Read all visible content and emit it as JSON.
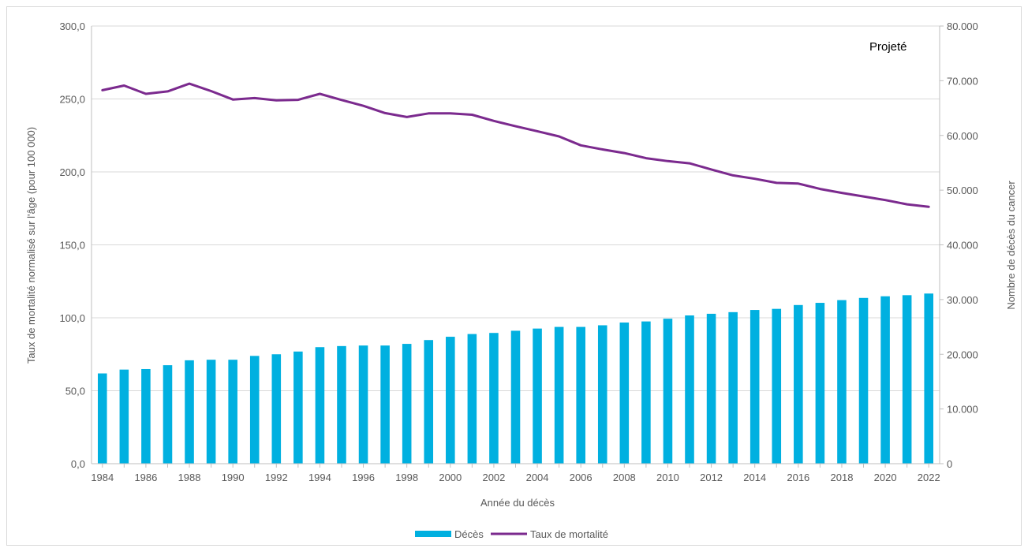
{
  "chart_data": {
    "type": "bar+line",
    "annotation": "Projeté",
    "xlabel": "Année du décès",
    "ylabel_left": "Taux de mortalité normalisé sur l'âge (pour 100 000)",
    "ylabel_right": "Nombre de décès du cancer",
    "ylim_left": [
      0,
      300
    ],
    "ylim_right": [
      0,
      80000
    ],
    "left_ticks": [
      "0,0",
      "50,0",
      "100,0",
      "150,0",
      "200,0",
      "250,0",
      "300,0"
    ],
    "right_ticks": [
      "0",
      "10.000",
      "20.000",
      "30.000",
      "40.000",
      "50.000",
      "60.000",
      "70.000",
      "80.000"
    ],
    "x_tick_labels": [
      "1984",
      "1986",
      "1988",
      "1990",
      "1992",
      "1994",
      "1996",
      "1998",
      "2000",
      "2002",
      "2004",
      "2006",
      "2008",
      "2010",
      "2012",
      "2014",
      "2016",
      "2018",
      "2020",
      "2022"
    ],
    "grid": true,
    "legend_position": "bottom",
    "x": [
      1984,
      1985,
      1986,
      1987,
      1988,
      1989,
      1990,
      1991,
      1992,
      1993,
      1994,
      1995,
      1996,
      1997,
      1998,
      1999,
      2000,
      2001,
      2002,
      2003,
      2004,
      2005,
      2006,
      2007,
      2008,
      2009,
      2010,
      2011,
      2012,
      2013,
      2014,
      2015,
      2016,
      2017,
      2018,
      2019,
      2020,
      2021,
      2022
    ],
    "series": [
      {
        "name": "Décès",
        "kind": "bar",
        "axis": "right",
        "color": "#00b0e0",
        "values": [
          16500,
          17200,
          17300,
          18000,
          18900,
          19000,
          19000,
          19700,
          20000,
          20500,
          21300,
          21500,
          21600,
          21600,
          21900,
          22600,
          23200,
          23700,
          23900,
          24300,
          24700,
          25000,
          25000,
          25300,
          25800,
          26000,
          26500,
          27100,
          27400,
          27700,
          28100,
          28300,
          29000,
          29400,
          29900,
          30300,
          30600,
          30800,
          31100
        ]
      },
      {
        "name": "Taux de mortalité",
        "kind": "line",
        "axis": "left",
        "color": "#7b2a8e",
        "values": [
          256.0,
          259.2,
          253.5,
          255.2,
          260.5,
          255.4,
          249.6,
          250.6,
          249.1,
          249.4,
          253.5,
          249.3,
          245.3,
          240.3,
          237.6,
          240.1,
          240.1,
          239.2,
          235.0,
          231.3,
          227.9,
          224.3,
          218.2,
          215.4,
          212.9,
          209.4,
          207.4,
          205.9,
          201.7,
          197.6,
          195.3,
          192.5,
          192.0,
          188.3,
          185.6,
          183.2,
          180.7,
          177.8,
          176.1
        ]
      }
    ]
  }
}
